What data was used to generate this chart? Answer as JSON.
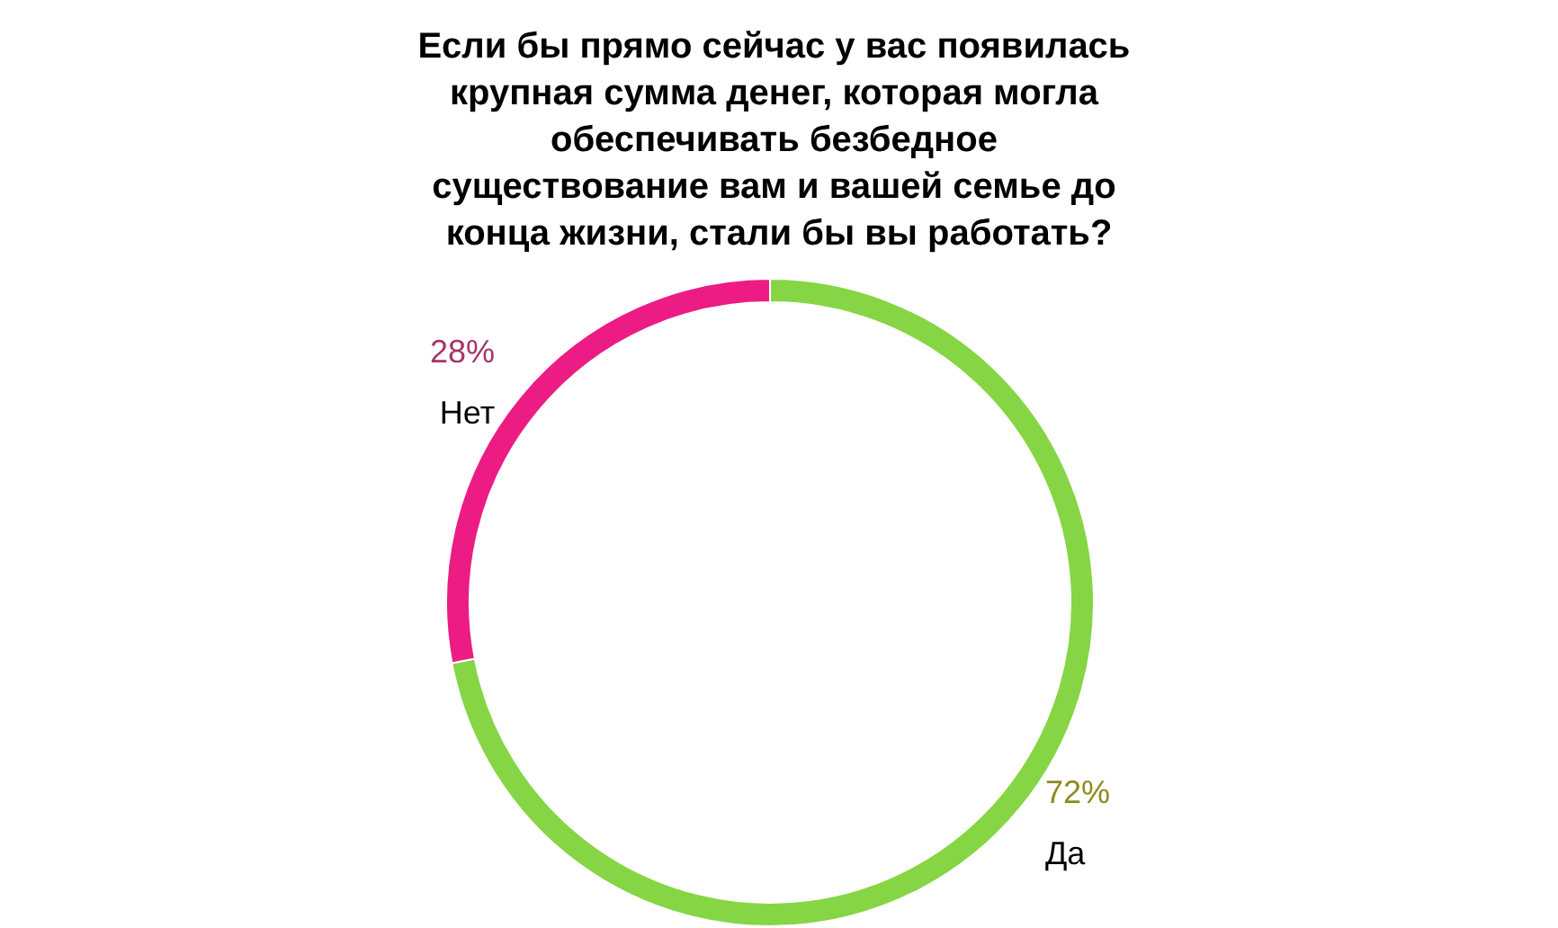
{
  "chart_data": {
    "type": "donut",
    "title": "Если бы прямо сейчас у вас появилась крупная сумма денег, которая могла обеспечивать безбедное существование вам и вашей семье до конца жизни, стали бы вы работать?",
    "categories": [
      "Да",
      "Нет"
    ],
    "values": [
      72,
      28
    ],
    "value_labels": [
      "72%",
      "28%"
    ],
    "colors": [
      "#86d544",
      "#ec1c84"
    ],
    "legend": false
  }
}
